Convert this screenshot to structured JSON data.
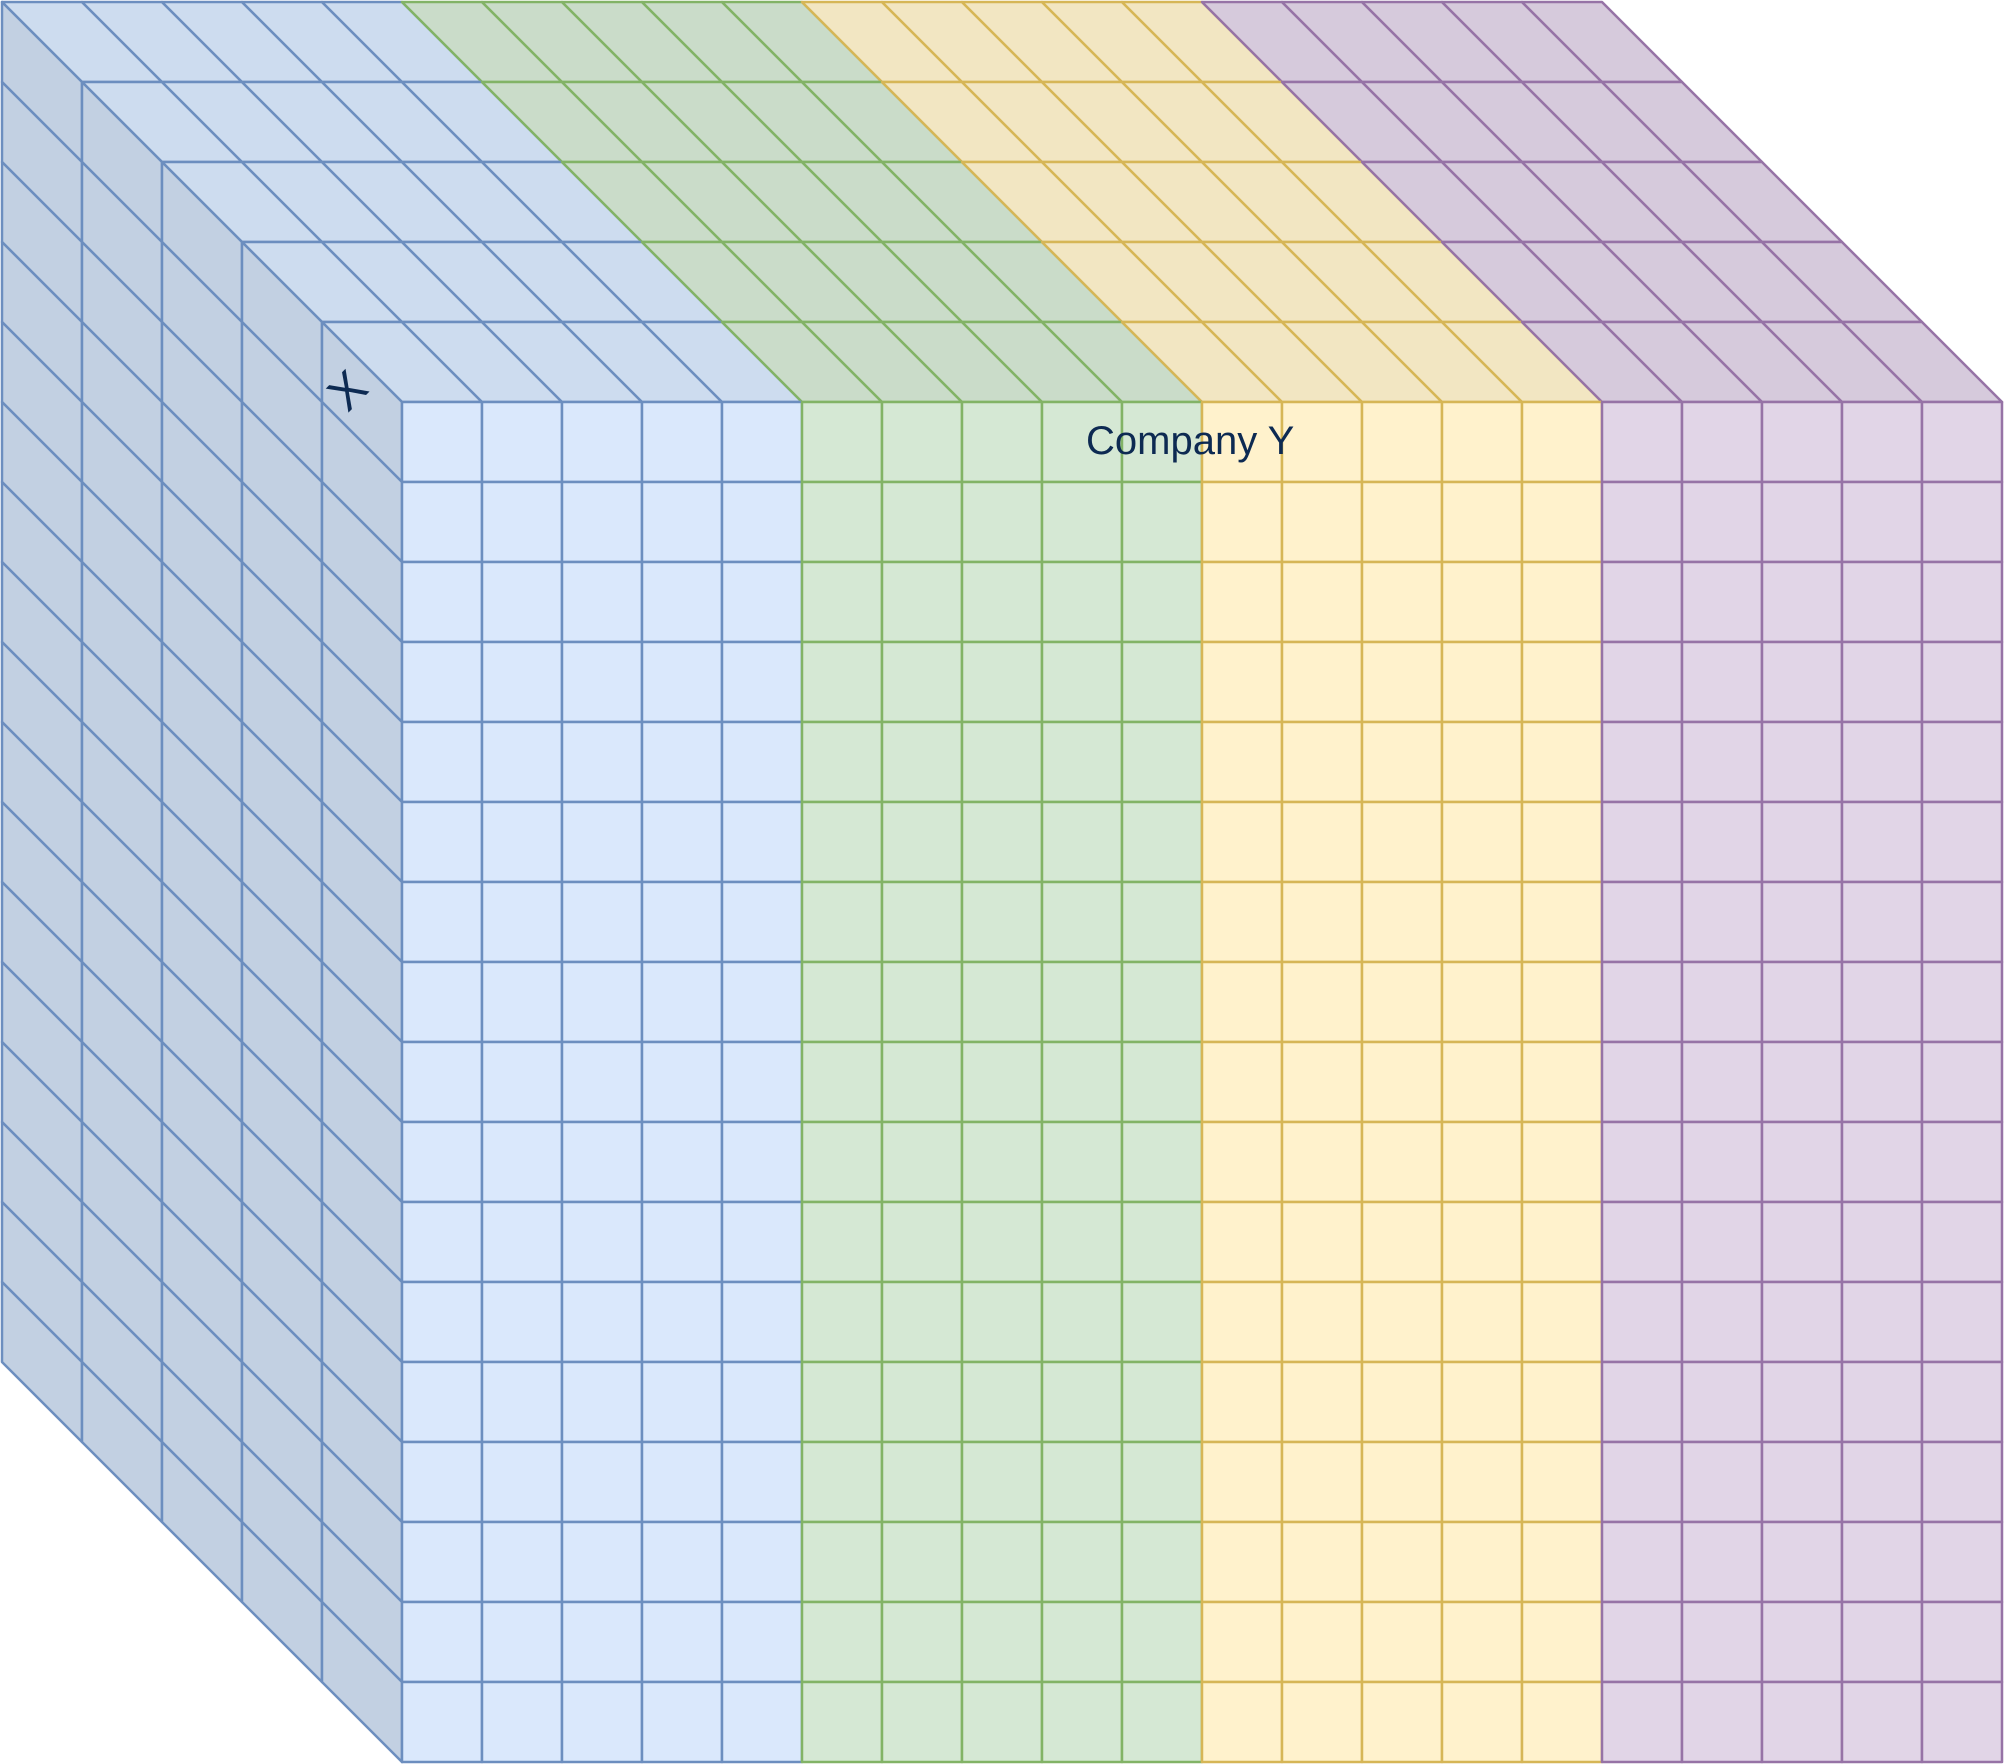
{
  "diagram": {
    "labels": {
      "company": "Company Y",
      "corner": "X"
    },
    "grid": {
      "front_columns": 20,
      "front_rows": 17,
      "depth_layers": 5
    },
    "groups": [
      {
        "name": "blue",
        "columns": 5,
        "front_fill": "#dae8fc",
        "top_fill": "#cddcef",
        "side_fill": "#c2d0e2",
        "stroke": "#6c8ebf"
      },
      {
        "name": "green",
        "columns": 5,
        "front_fill": "#d5e8d4",
        "top_fill": "#cadcc9",
        "side_fill": "#c0d2bf",
        "stroke": "#82b366"
      },
      {
        "name": "yellow",
        "columns": 5,
        "front_fill": "#fff2cc",
        "top_fill": "#f2e6c2",
        "side_fill": "#e6dab7",
        "stroke": "#d6b656"
      },
      {
        "name": "purple",
        "columns": 5,
        "front_fill": "#e1d5e7",
        "top_fill": "#d6cadc",
        "side_fill": "#cbbfd1",
        "stroke": "#9673a6"
      }
    ]
  }
}
